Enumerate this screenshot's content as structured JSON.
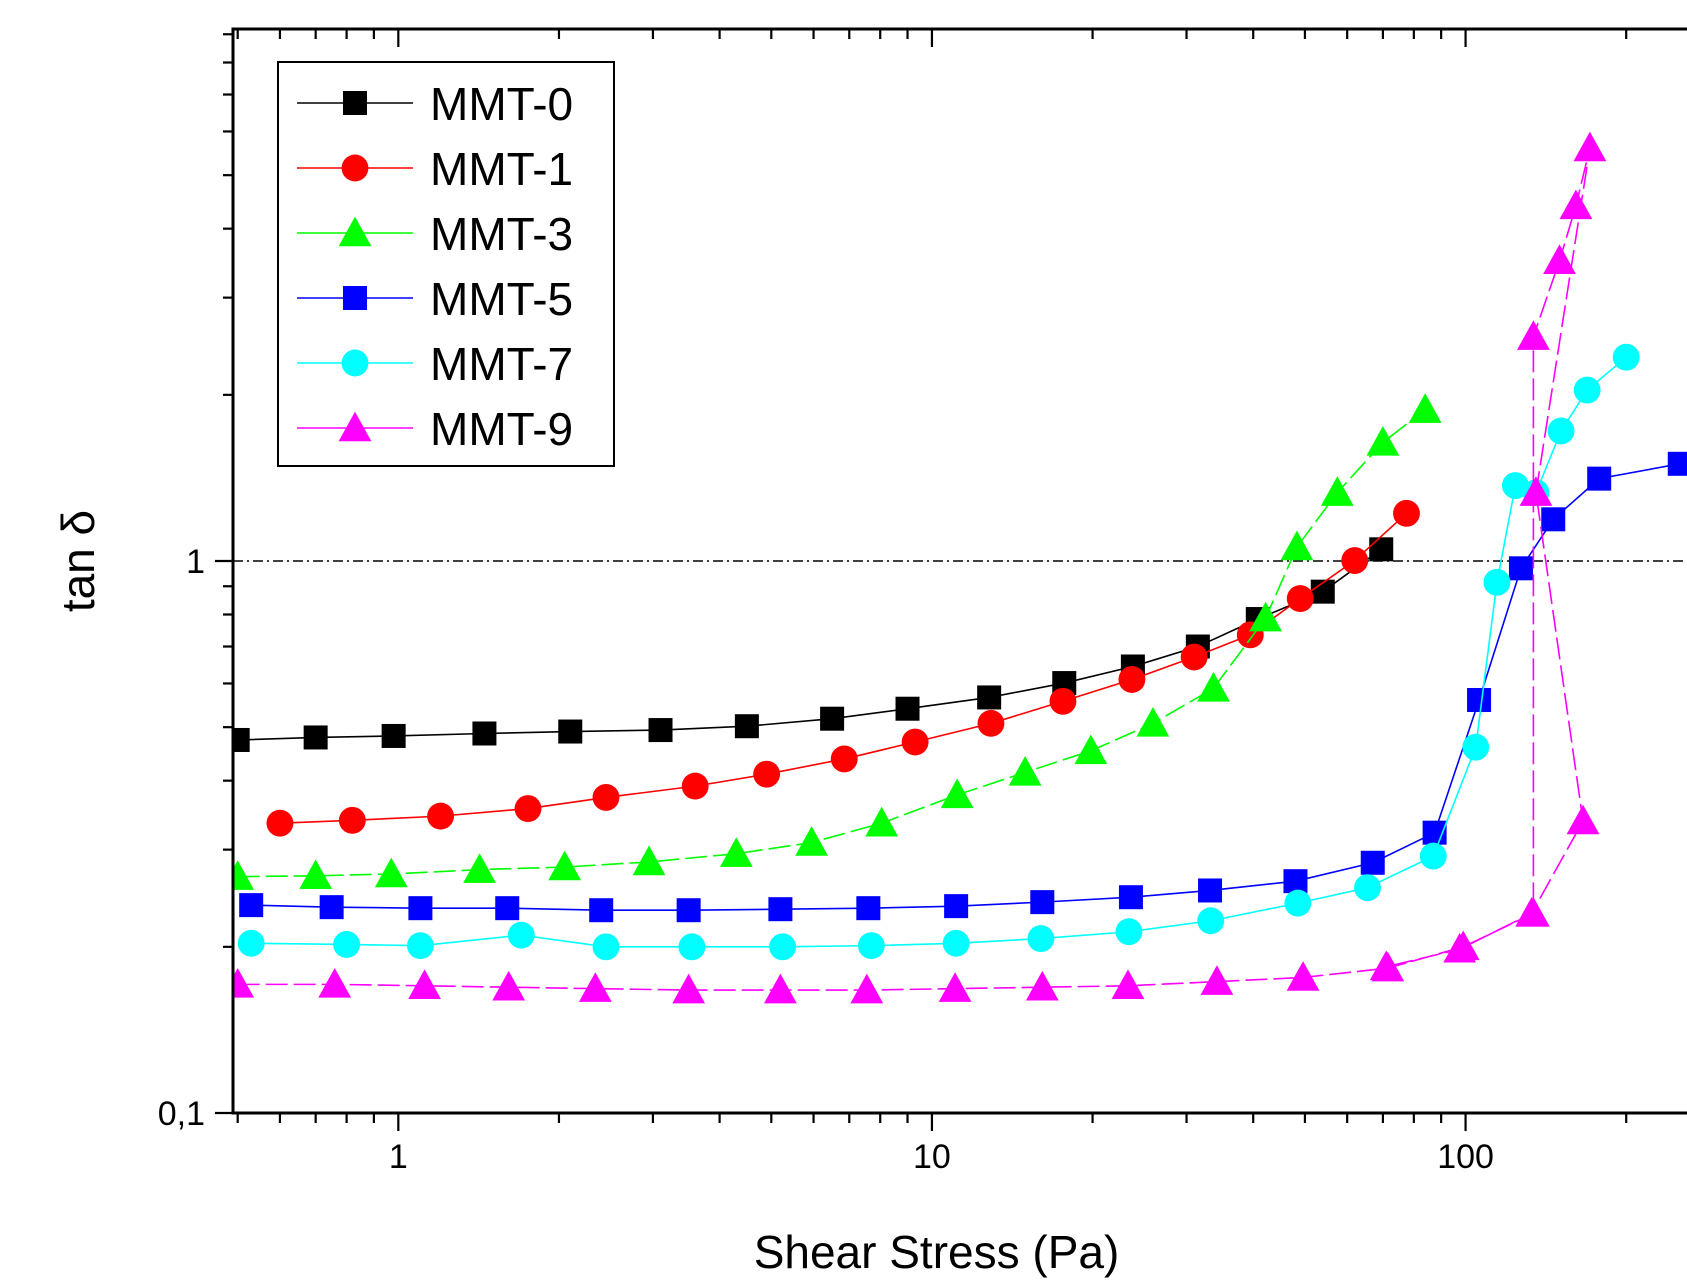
{
  "chart_data": {
    "type": "line",
    "xlabel": "Shear Stress (Pa)",
    "ylabel": "tan δ",
    "x_scale": "log",
    "y_scale": "log",
    "xlim": [
      0.49,
      260
    ],
    "ylim": [
      0.1,
      9.2
    ],
    "x_ticks": [
      {
        "value": 1,
        "label": "1"
      },
      {
        "value": 10,
        "label": "10"
      },
      {
        "value": 100,
        "label": "100"
      }
    ],
    "y_ticks": [
      {
        "value": 0.1,
        "label": "0,1"
      },
      {
        "value": 1,
        "label": "1"
      }
    ],
    "reference_line": {
      "y": 1,
      "style": "dash-dot",
      "color": "#000000"
    },
    "legend": {
      "placement": "top-left"
    },
    "series": [
      {
        "name": "MMT-0",
        "color": "#000000",
        "marker": "square",
        "line_style": "solid",
        "x": [
          0.5,
          0.7,
          0.98,
          1.45,
          2.1,
          3.1,
          4.5,
          6.5,
          9.0,
          12.8,
          17.7,
          23.8,
          31.5,
          40.8,
          54.0,
          69.5
        ],
        "y": [
          0.474,
          0.479,
          0.482,
          0.487,
          0.491,
          0.494,
          0.502,
          0.518,
          0.54,
          0.566,
          0.601,
          0.644,
          0.7,
          0.785,
          0.88,
          1.05
        ]
      },
      {
        "name": "MMT-1",
        "color": "#ff0000",
        "marker": "circle",
        "line_style": "solid",
        "x": [
          0.6,
          0.82,
          1.2,
          1.75,
          2.45,
          3.6,
          4.9,
          6.85,
          9.3,
          12.9,
          17.6,
          23.7,
          31.0,
          39.5,
          49.0,
          62.0,
          77.5
        ],
        "y": [
          0.335,
          0.339,
          0.345,
          0.356,
          0.373,
          0.391,
          0.411,
          0.438,
          0.47,
          0.508,
          0.557,
          0.61,
          0.67,
          0.735,
          0.855,
          1.002,
          1.22
        ]
      },
      {
        "name": "MMT-3",
        "color": "#00ff00",
        "marker": "triangle",
        "line_style": "dashed",
        "x": [
          0.5,
          0.7,
          0.97,
          1.42,
          2.05,
          2.95,
          4.3,
          5.95,
          8.05,
          11.15,
          14.95,
          19.85,
          25.95,
          33.7,
          42.2,
          48.3,
          57.5,
          70.0,
          84.0
        ],
        "y": [
          0.268,
          0.269,
          0.271,
          0.276,
          0.279,
          0.285,
          0.295,
          0.309,
          0.335,
          0.377,
          0.414,
          0.453,
          0.508,
          0.588,
          0.788,
          1.06,
          1.33,
          1.64,
          1.88
        ]
      },
      {
        "name": "MMT-5",
        "color": "#0000ff",
        "marker": "square",
        "line_style": "solid",
        "x": [
          0.53,
          0.75,
          1.1,
          1.6,
          2.4,
          3.5,
          5.2,
          7.6,
          11.1,
          16.1,
          23.6,
          33.2,
          48.0,
          67.0,
          87.5,
          106.0,
          127.0,
          146.0,
          178.0,
          252.0
        ],
        "y": [
          0.238,
          0.236,
          0.235,
          0.235,
          0.233,
          0.233,
          0.234,
          0.235,
          0.237,
          0.241,
          0.246,
          0.253,
          0.263,
          0.284,
          0.322,
          0.56,
          0.97,
          1.19,
          1.41,
          1.5
        ]
      },
      {
        "name": "MMT-7",
        "color": "#00ffff",
        "marker": "circle",
        "line_style": "solid",
        "x": [
          0.53,
          0.8,
          1.1,
          1.7,
          2.45,
          3.55,
          5.25,
          7.7,
          11.1,
          16.0,
          23.4,
          33.3,
          48.5,
          65.5,
          87.0,
          104.5,
          114.5,
          124.0,
          135.5,
          151.0,
          169.0,
          200.0
        ],
        "y": [
          0.203,
          0.202,
          0.201,
          0.21,
          0.2,
          0.2,
          0.2,
          0.201,
          0.203,
          0.207,
          0.213,
          0.223,
          0.24,
          0.256,
          0.292,
          0.46,
          0.915,
          1.37,
          1.33,
          1.72,
          2.04,
          2.34
        ]
      },
      {
        "name": "MMT-9",
        "color": "#ff00ff",
        "marker": "triangle",
        "line_style": "dashed",
        "x": [
          0.5,
          0.76,
          1.12,
          1.61,
          2.34,
          3.5,
          5.2,
          7.55,
          11.05,
          16.1,
          23.3,
          34.2,
          49.6,
          71.5,
          99.0,
          134.0,
          134.0,
          150.0,
          161.0,
          171.0,
          135.5,
          166.0,
          133.0,
          97.5,
          71.0
        ],
        "y": [
          0.171,
          0.171,
          0.17,
          0.169,
          0.168,
          0.167,
          0.167,
          0.167,
          0.168,
          0.169,
          0.17,
          0.173,
          0.176,
          0.183,
          0.2,
          0.23,
          2.55,
          3.5,
          4.4,
          5.6,
          1.33,
          0.338,
          0.23,
          0.198,
          0.184
        ]
      }
    ]
  }
}
